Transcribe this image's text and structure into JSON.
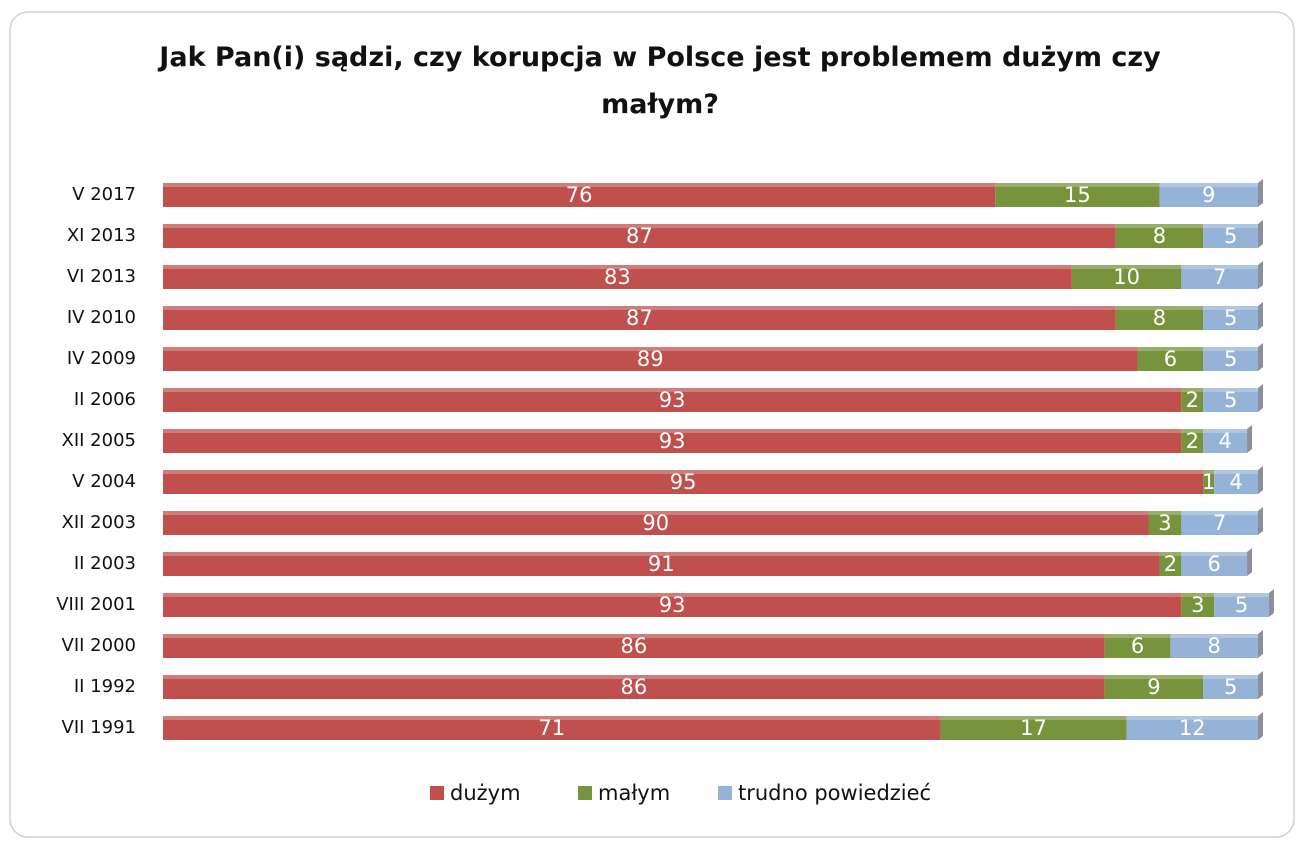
{
  "chart_data": {
    "type": "bar",
    "orientation": "horizontal",
    "stacked": true,
    "title": "Jak Pan(i) sądzi, czy korupcja w Polsce jest problemem dużym czy małym?",
    "categories": [
      "V 2017",
      "XI 2013",
      "VI 2013",
      "IV 2010",
      "IV 2009",
      "II 2006",
      "XII 2005",
      "V 2004",
      "XII 2003",
      "II 2003",
      "VIII 2001",
      "VII 2000",
      "II 1992",
      "VII 1991"
    ],
    "series": [
      {
        "name": "dużym",
        "color": "#c0504d",
        "values": [
          76,
          87,
          83,
          87,
          89,
          93,
          93,
          95,
          90,
          91,
          93,
          86,
          86,
          71
        ]
      },
      {
        "name": "małym",
        "color": "#77933c",
        "values": [
          15,
          8,
          10,
          8,
          6,
          2,
          2,
          1,
          3,
          2,
          3,
          6,
          9,
          17
        ]
      },
      {
        "name": "trudno powiedzieć",
        "color": "#95b3d7",
        "values": [
          9,
          5,
          7,
          5,
          5,
          5,
          4,
          4,
          7,
          6,
          5,
          8,
          5,
          12
        ]
      }
    ],
    "xlim": [
      0,
      100
    ],
    "legend": "bottom"
  }
}
